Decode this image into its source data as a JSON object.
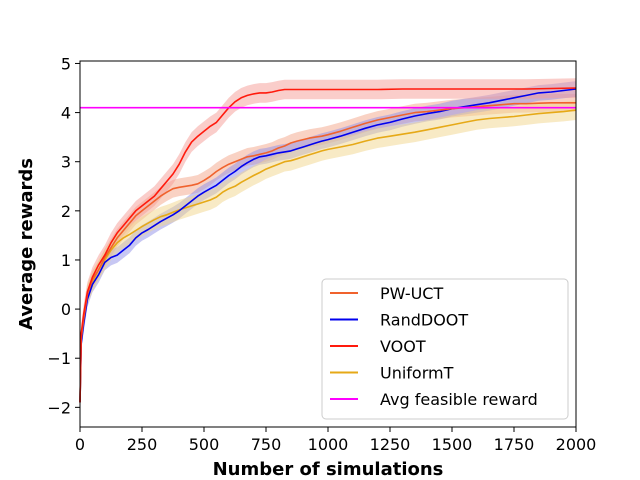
{
  "chart_data": {
    "type": "line",
    "xlabel": "Number of simulations",
    "ylabel": "Average rewards",
    "xlim": [
      0,
      2000
    ],
    "ylim": [
      -2.4,
      5.05
    ],
    "xticks": [
      0,
      250,
      500,
      750,
      1000,
      1250,
      1500,
      1750,
      2000
    ],
    "yticks": [
      -2,
      -1,
      0,
      1,
      2,
      3,
      4,
      5
    ],
    "xtick_labels": [
      "0",
      "250",
      "500",
      "750",
      "1000",
      "1250",
      "1500",
      "1750",
      "2000"
    ],
    "ytick_labels": [
      "−2",
      "−1",
      "0",
      "1",
      "2",
      "3",
      "4",
      "5"
    ],
    "grid": false,
    "legend_position": "lower-right",
    "series": [
      {
        "name": "PW-UCT",
        "color": "#f0622d",
        "band_color": "#f4a58a",
        "x": [
          0,
          5,
          15,
          30,
          50,
          75,
          100,
          125,
          150,
          175,
          200,
          225,
          250,
          275,
          300,
          325,
          350,
          375,
          400,
          425,
          450,
          475,
          500,
          525,
          550,
          575,
          600,
          625,
          650,
          675,
          700,
          725,
          750,
          775,
          800,
          825,
          850,
          875,
          900,
          925,
          950,
          975,
          1000,
          1050,
          1100,
          1150,
          1200,
          1250,
          1300,
          1350,
          1400,
          1450,
          1500,
          1550,
          1600,
          1650,
          1700,
          1750,
          1800,
          1850,
          1900,
          1950,
          2000
        ],
        "values": [
          -1.9,
          -0.6,
          -0.2,
          0.3,
          0.6,
          0.8,
          1.05,
          1.25,
          1.45,
          1.6,
          1.75,
          1.9,
          2.0,
          2.1,
          2.2,
          2.3,
          2.38,
          2.45,
          2.48,
          2.5,
          2.52,
          2.55,
          2.62,
          2.7,
          2.8,
          2.88,
          2.95,
          3.0,
          3.05,
          3.1,
          3.12,
          3.15,
          3.18,
          3.22,
          3.28,
          3.32,
          3.38,
          3.42,
          3.45,
          3.48,
          3.5,
          3.52,
          3.55,
          3.62,
          3.7,
          3.78,
          3.85,
          3.9,
          3.95,
          4.0,
          4.02,
          4.05,
          4.08,
          4.1,
          4.12,
          4.14,
          4.16,
          4.18,
          4.18,
          4.19,
          4.2,
          4.2,
          4.2
        ],
        "spread": 0.18
      },
      {
        "name": "RandDOOT",
        "color": "#0000ee",
        "band_color": "#8f8fe8",
        "x": [
          0,
          5,
          15,
          30,
          50,
          75,
          100,
          125,
          150,
          175,
          200,
          225,
          250,
          275,
          300,
          325,
          350,
          375,
          400,
          425,
          450,
          475,
          500,
          525,
          550,
          575,
          600,
          625,
          650,
          675,
          700,
          725,
          750,
          775,
          800,
          825,
          850,
          875,
          900,
          925,
          950,
          975,
          1000,
          1050,
          1100,
          1150,
          1200,
          1250,
          1300,
          1350,
          1400,
          1450,
          1500,
          1550,
          1600,
          1650,
          1700,
          1750,
          1800,
          1850,
          1900,
          1950,
          2000
        ],
        "values": [
          -1.9,
          -0.7,
          -0.3,
          0.2,
          0.5,
          0.7,
          0.95,
          1.05,
          1.1,
          1.2,
          1.3,
          1.45,
          1.55,
          1.62,
          1.7,
          1.78,
          1.85,
          1.92,
          2.0,
          2.1,
          2.2,
          2.3,
          2.38,
          2.45,
          2.52,
          2.62,
          2.72,
          2.8,
          2.9,
          2.98,
          3.05,
          3.1,
          3.12,
          3.15,
          3.18,
          3.2,
          3.22,
          3.26,
          3.3,
          3.34,
          3.38,
          3.42,
          3.45,
          3.52,
          3.6,
          3.68,
          3.75,
          3.8,
          3.87,
          3.93,
          3.98,
          4.02,
          4.08,
          4.12,
          4.16,
          4.2,
          4.25,
          4.3,
          4.35,
          4.4,
          4.42,
          4.45,
          4.48
        ],
        "spread": 0.16
      },
      {
        "name": "VOOT",
        "color": "#ff1a0d",
        "band_color": "#f59b95",
        "x": [
          0,
          5,
          15,
          30,
          50,
          75,
          100,
          125,
          150,
          175,
          200,
          225,
          250,
          275,
          300,
          325,
          350,
          375,
          400,
          425,
          450,
          475,
          500,
          525,
          550,
          575,
          600,
          625,
          650,
          675,
          700,
          725,
          750,
          775,
          800,
          825,
          850,
          900,
          1000,
          1100,
          1200,
          1300,
          1400,
          1500,
          1600,
          1700,
          1800,
          1900,
          2000
        ],
        "values": [
          -1.9,
          -0.5,
          -0.1,
          0.35,
          0.65,
          0.9,
          1.1,
          1.35,
          1.55,
          1.7,
          1.85,
          2.0,
          2.1,
          2.2,
          2.3,
          2.45,
          2.6,
          2.75,
          2.95,
          3.2,
          3.4,
          3.52,
          3.62,
          3.72,
          3.8,
          3.95,
          4.1,
          4.22,
          4.3,
          4.35,
          4.38,
          4.4,
          4.4,
          4.42,
          4.45,
          4.47,
          4.47,
          4.47,
          4.47,
          4.47,
          4.47,
          4.48,
          4.48,
          4.48,
          4.48,
          4.48,
          4.48,
          4.49,
          4.5
        ],
        "spread": 0.2
      },
      {
        "name": "UniformT",
        "color": "#e6a917",
        "band_color": "#f2d68c",
        "x": [
          0,
          5,
          15,
          30,
          50,
          75,
          100,
          125,
          150,
          175,
          200,
          225,
          250,
          275,
          300,
          325,
          350,
          375,
          400,
          425,
          450,
          475,
          500,
          525,
          550,
          575,
          600,
          625,
          650,
          675,
          700,
          725,
          750,
          775,
          800,
          825,
          850,
          875,
          900,
          925,
          950,
          975,
          1000,
          1050,
          1100,
          1150,
          1200,
          1250,
          1300,
          1350,
          1400,
          1450,
          1500,
          1550,
          1600,
          1650,
          1700,
          1750,
          1800,
          1850,
          1900,
          1950,
          2000
        ],
        "values": [
          -1.9,
          -0.6,
          -0.2,
          0.3,
          0.55,
          0.8,
          1.0,
          1.2,
          1.35,
          1.45,
          1.52,
          1.6,
          1.68,
          1.75,
          1.82,
          1.88,
          1.92,
          1.97,
          2.02,
          2.06,
          2.1,
          2.14,
          2.18,
          2.22,
          2.28,
          2.38,
          2.45,
          2.5,
          2.58,
          2.65,
          2.72,
          2.78,
          2.85,
          2.9,
          2.95,
          3.0,
          3.02,
          3.06,
          3.1,
          3.14,
          3.18,
          3.22,
          3.25,
          3.3,
          3.35,
          3.42,
          3.48,
          3.52,
          3.56,
          3.6,
          3.65,
          3.7,
          3.75,
          3.8,
          3.85,
          3.88,
          3.9,
          3.92,
          3.95,
          3.98,
          4.0,
          4.02,
          4.05
        ],
        "spread": 0.2
      },
      {
        "name": "Avg feasible reward",
        "color": "#ff00ff",
        "x": [
          0,
          2000
        ],
        "values": [
          4.1,
          4.1
        ]
      }
    ]
  }
}
